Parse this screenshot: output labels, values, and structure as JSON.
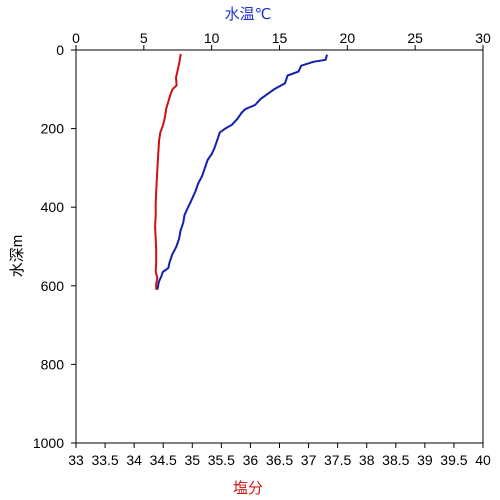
{
  "chart_data": {
    "type": "line",
    "title": "",
    "top_axis": {
      "label": "水温℃",
      "range": [
        0,
        30
      ],
      "ticks": [
        0,
        5,
        10,
        15,
        20,
        25,
        30
      ],
      "tick_labels": [
        "0",
        "5",
        "10",
        "15",
        "20",
        "25",
        "30"
      ],
      "color": "#1f35c8"
    },
    "bottom_axis": {
      "label": "塩分",
      "range": [
        33,
        40
      ],
      "ticks": [
        33,
        33.5,
        34,
        34.5,
        35,
        35.5,
        36,
        36.5,
        37,
        37.5,
        38,
        38.5,
        39,
        39.5,
        40
      ],
      "tick_labels": [
        "33",
        "33.5",
        "34",
        "34.5",
        "35",
        "35.5",
        "36",
        "36.5",
        "37",
        "37.5",
        "38",
        "38.5",
        "39",
        "39.5",
        "40"
      ],
      "color": "#d01515"
    },
    "y_axis": {
      "label": "水深m",
      "range": [
        0,
        1000
      ],
      "inverted": true,
      "ticks": [
        0,
        200,
        400,
        600,
        800,
        1000
      ],
      "tick_labels": [
        "0",
        "200",
        "400",
        "600",
        "800",
        "1000"
      ]
    },
    "grid": false,
    "series": [
      {
        "axis": "top",
        "color": "#1020b0",
        "points": [
          [
            18.5,
            12
          ],
          [
            18.4,
            25
          ],
          [
            17.5,
            30
          ],
          [
            16.6,
            40
          ],
          [
            16.4,
            55
          ],
          [
            15.6,
            65
          ],
          [
            15.4,
            85
          ],
          [
            14.6,
            100
          ],
          [
            14.0,
            115
          ],
          [
            13.6,
            125
          ],
          [
            13.2,
            140
          ],
          [
            12.5,
            150
          ],
          [
            12.2,
            160
          ],
          [
            11.9,
            175
          ],
          [
            11.5,
            190
          ],
          [
            11.0,
            200
          ],
          [
            10.6,
            210
          ],
          [
            10.4,
            230
          ],
          [
            10.2,
            250
          ],
          [
            10.0,
            265
          ],
          [
            9.7,
            280
          ],
          [
            9.5,
            300
          ],
          [
            9.3,
            320
          ],
          [
            9.0,
            340
          ],
          [
            8.8,
            360
          ],
          [
            8.6,
            375
          ],
          [
            8.4,
            390
          ],
          [
            8.2,
            405
          ],
          [
            8.0,
            420
          ],
          [
            7.9,
            440
          ],
          [
            7.7,
            460
          ],
          [
            7.6,
            480
          ],
          [
            7.4,
            500
          ],
          [
            7.1,
            520
          ],
          [
            6.9,
            540
          ],
          [
            6.8,
            555
          ],
          [
            6.4,
            565
          ],
          [
            6.3,
            575
          ],
          [
            6.1,
            590
          ],
          [
            6.0,
            610
          ]
        ]
      },
      {
        "axis": "bottom",
        "color": "#d01010",
        "points": [
          [
            34.8,
            10
          ],
          [
            34.78,
            30
          ],
          [
            34.75,
            50
          ],
          [
            34.72,
            70
          ],
          [
            34.73,
            90
          ],
          [
            34.66,
            100
          ],
          [
            34.62,
            115
          ],
          [
            34.58,
            135
          ],
          [
            34.55,
            150
          ],
          [
            34.53,
            170
          ],
          [
            34.5,
            190
          ],
          [
            34.45,
            210
          ],
          [
            34.43,
            230
          ],
          [
            34.42,
            250
          ],
          [
            34.41,
            275
          ],
          [
            34.4,
            300
          ],
          [
            34.39,
            330
          ],
          [
            34.38,
            360
          ],
          [
            34.37,
            390
          ],
          [
            34.37,
            420
          ],
          [
            34.36,
            450
          ],
          [
            34.37,
            480
          ],
          [
            34.38,
            510
          ],
          [
            34.38,
            540
          ],
          [
            34.37,
            565
          ],
          [
            34.4,
            580
          ],
          [
            34.38,
            595
          ],
          [
            34.38,
            610
          ]
        ]
      }
    ]
  }
}
